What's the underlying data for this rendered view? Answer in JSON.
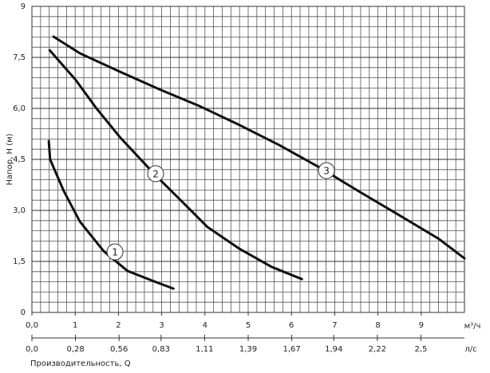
{
  "chart_data": {
    "type": "line",
    "y_label": "Напор, Н (м)",
    "x_label": "Производительность, Q",
    "x_unit": "м³/ч",
    "x2_unit": "л/с",
    "xlim": [
      0,
      10
    ],
    "xticks": [
      {
        "value": 0,
        "label": "0,0"
      },
      1,
      2,
      3,
      4,
      5,
      6,
      7,
      8,
      9
    ],
    "x2lim": [
      0,
      2.78
    ],
    "x2ticks": [
      {
        "value": 0,
        "label": "0,0"
      },
      {
        "value": 0.28,
        "label": "0,28"
      },
      {
        "value": 0.56,
        "label": "0,56"
      },
      {
        "value": 0.83,
        "label": "0,83"
      },
      {
        "value": 1.11,
        "label": "1,11"
      },
      {
        "value": 1.39,
        "label": "1,39"
      },
      {
        "value": 1.67,
        "label": "1,67"
      },
      {
        "value": 1.94,
        "label": "1,94"
      },
      {
        "value": 2.22,
        "label": "2,22"
      },
      {
        "value": 2.5,
        "label": "2,5"
      }
    ],
    "ylim": [
      0,
      9
    ],
    "yticks": [
      0,
      {
        "value": 1.5,
        "label": "1,5"
      },
      {
        "value": 3,
        "label": "3,0"
      },
      {
        "value": 4.5,
        "label": "4,5"
      },
      {
        "value": 6,
        "label": "6,0"
      },
      {
        "value": 7.5,
        "label": "7,5"
      },
      9
    ],
    "grid": true,
    "series": [
      {
        "name": "1",
        "color": "#111111",
        "label_at": [
          1.92,
          1.78
        ],
        "x": [
          0.39,
          0.42,
          0.74,
          1.11,
          1.66,
          2.21,
          2.77,
          3.27
        ],
        "values": [
          5.04,
          4.5,
          3.56,
          2.67,
          1.8,
          1.22,
          0.94,
          0.7
        ]
      },
      {
        "name": "2",
        "color": "#111111",
        "label_at": [
          2.86,
          4.08
        ],
        "x": [
          0.41,
          1.01,
          1.48,
          2.03,
          2.86,
          3.51,
          4.06,
          4.8,
          5.54,
          6.24
        ],
        "values": [
          7.71,
          6.84,
          6.02,
          5.16,
          4.03,
          3.21,
          2.51,
          1.87,
          1.34,
          0.98
        ]
      },
      {
        "name": "3",
        "color": "#111111",
        "label_at": [
          6.81,
          4.17
        ],
        "x": [
          0.5,
          1.11,
          2.03,
          2.95,
          3.87,
          4.8,
          5.72,
          6.64,
          7.56,
          8.49,
          9.41,
          10.0
        ],
        "values": [
          8.11,
          7.62,
          7.08,
          6.56,
          6.07,
          5.51,
          4.92,
          4.27,
          3.56,
          2.86,
          2.16,
          1.59
        ]
      }
    ]
  }
}
